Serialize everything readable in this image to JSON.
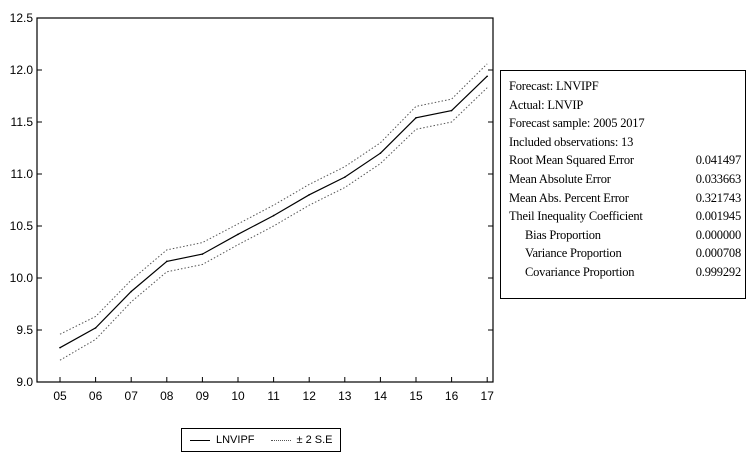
{
  "chart_data": {
    "type": "line",
    "x": [
      "05",
      "06",
      "07",
      "08",
      "09",
      "10",
      "11",
      "12",
      "13",
      "14",
      "15",
      "16",
      "17"
    ],
    "series": [
      {
        "name": "LNVIPF",
        "style": "solid",
        "color": "#000000",
        "values": [
          9.33,
          9.52,
          9.87,
          10.16,
          10.23,
          10.42,
          10.6,
          10.8,
          10.97,
          11.2,
          11.54,
          11.61,
          11.94
        ]
      },
      {
        "name": "±2 S.E",
        "style": "dotted",
        "color": "#555555",
        "upper": [
          9.46,
          9.63,
          9.98,
          10.27,
          10.34,
          10.52,
          10.7,
          10.9,
          11.07,
          11.3,
          11.65,
          11.72,
          12.06
        ],
        "lower": [
          9.21,
          9.41,
          9.77,
          10.06,
          10.13,
          10.32,
          10.5,
          10.7,
          10.87,
          11.1,
          11.43,
          11.5,
          11.83
        ]
      }
    ],
    "yticks": [
      "9.0",
      "9.5",
      "10.0",
      "10.5",
      "11.0",
      "11.5",
      "12.0",
      "12.5"
    ],
    "ylim": [
      9.0,
      12.5
    ],
    "xlabel": "",
    "ylabel": "",
    "grid": false,
    "legend": "bottom"
  },
  "legend": {
    "forecast_label": "LNVIPF",
    "se_label": "± 2 S.E"
  },
  "stats": {
    "forecast": "Forecast: LNVIPF",
    "actual": "Actual: LNVIP",
    "sample": "Forecast sample: 2005 2017",
    "observations": "Included observations: 13",
    "rows": [
      {
        "label": "Root Mean Squared Error",
        "value": "0.041497"
      },
      {
        "label": "Mean Absolute Error",
        "value": "0.033663"
      },
      {
        "label": "Mean Abs. Percent Error",
        "value": "0.321743"
      },
      {
        "label": "Theil Inequality Coefficient",
        "value": "0.001945"
      },
      {
        "label": "Bias Proportion",
        "value": "0.000000"
      },
      {
        "label": "Variance Proportion",
        "value": "0.000708"
      },
      {
        "label": "Covariance Proportion",
        "value": "0.999292"
      }
    ]
  }
}
